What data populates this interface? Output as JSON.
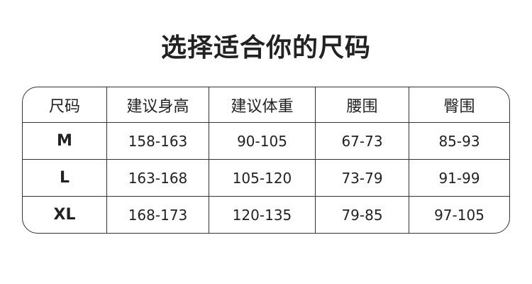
{
  "title": "选择适合你的尺码",
  "table": {
    "headers": [
      "尺码",
      "建议身高",
      "建议体重",
      "腰围",
      "臀围"
    ],
    "rows": [
      [
        "M",
        "158-163",
        "90-105",
        "67-73",
        "85-93"
      ],
      [
        "L",
        "163-168",
        "105-120",
        "73-79",
        "91-99"
      ],
      [
        "XL",
        "168-173",
        "120-135",
        "79-85",
        "97-105"
      ]
    ]
  }
}
